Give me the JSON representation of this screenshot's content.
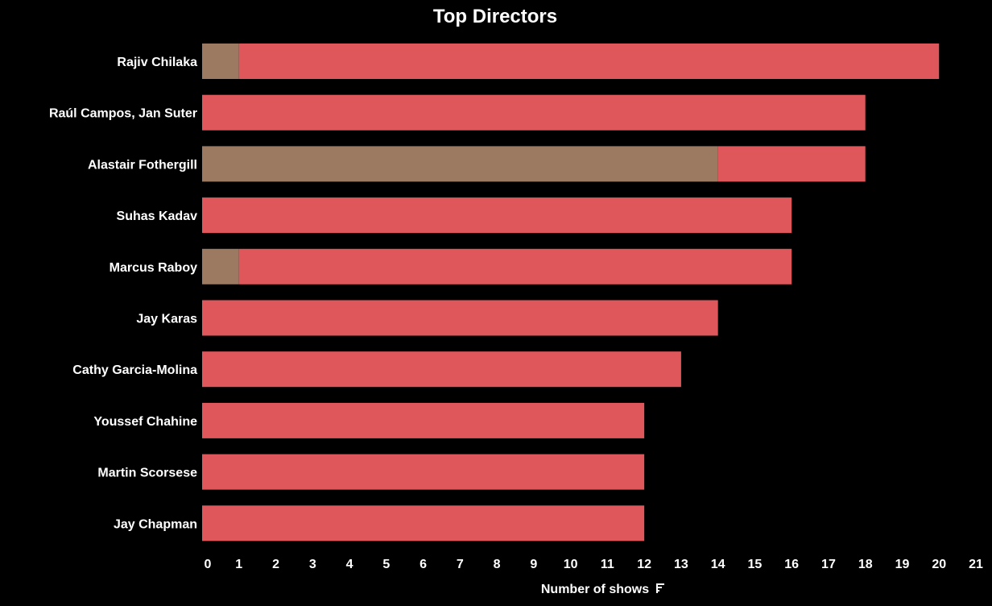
{
  "chart_data": {
    "type": "bar",
    "orientation": "horizontal",
    "stacked": true,
    "title": "Top Directors",
    "xlabel": "Number of shows",
    "ylabel": "",
    "xlim": [
      0,
      21
    ],
    "x_ticks": [
      0,
      1,
      2,
      3,
      4,
      5,
      6,
      7,
      8,
      9,
      10,
      11,
      12,
      13,
      14,
      15,
      16,
      17,
      18,
      19,
      20,
      21
    ],
    "grid": false,
    "legend": "none",
    "sort_icon": "sort-descending-icon",
    "categories": [
      "Rajiv Chilaka",
      "Raúl Campos, Jan Suter",
      "Alastair Fothergill",
      "Suhas Kadav",
      "Marcus Raboy",
      "Jay Karas",
      "Cathy Garcia-Molina",
      "Youssef Chahine",
      "Martin Scorsese",
      "Jay Chapman"
    ],
    "series": [
      {
        "color": "#9c7a62",
        "values": [
          1,
          0,
          14,
          0,
          1,
          0,
          0,
          0,
          0,
          0
        ]
      },
      {
        "color": "#e0575b",
        "values": [
          19,
          18,
          4,
          16,
          15,
          14,
          13,
          12,
          12,
          12
        ]
      }
    ],
    "totals": [
      20,
      18,
      18,
      16,
      16,
      14,
      13,
      12,
      12,
      12
    ]
  }
}
